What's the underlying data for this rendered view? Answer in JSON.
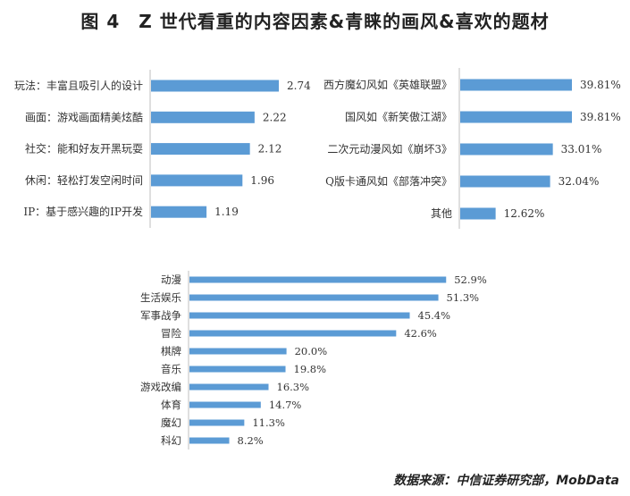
{
  "title": "图 4　Z 世代看重的内容因素&青睐的画风&喜欢的题材",
  "source": "数据来源：中信证券研究部，MobData",
  "colors": {
    "bar": "#5b9bd5",
    "axis": "#bfbfbf"
  },
  "chart_data": [
    {
      "type": "bar",
      "orientation": "horizontal",
      "title": "",
      "categories": [
        "玩法：丰富且吸引人的设计",
        "画面：游戏画面精美炫酷",
        "社交：能和好友开黑玩耍",
        "休闲：轻松打发空闲时间",
        "IP：基于感兴趣的IP开发"
      ],
      "values": [
        2.74,
        2.22,
        2.12,
        1.96,
        1.19
      ],
      "labels": [
        "2.74",
        "2.22",
        "2.12",
        "1.96",
        "1.19"
      ]
    },
    {
      "type": "bar",
      "orientation": "horizontal",
      "title": "",
      "categories": [
        "西方魔幻风如《英雄联盟》",
        "国风如《新笑傲江湖》",
        "二次元动漫风如《崩坏3》",
        "Q版卡通风如《部落冲突》",
        "其他"
      ],
      "values": [
        39.81,
        39.81,
        33.01,
        32.04,
        12.62
      ],
      "labels": [
        "39.81%",
        "39.81%",
        "33.01%",
        "32.04%",
        "12.62%"
      ]
    },
    {
      "type": "bar",
      "orientation": "horizontal",
      "title": "",
      "categories": [
        "动漫",
        "生活娱乐",
        "军事战争",
        "冒险",
        "棋牌",
        "音乐",
        "游戏改编",
        "体育",
        "魔幻",
        "科幻"
      ],
      "values": [
        52.9,
        51.3,
        45.4,
        42.6,
        20.0,
        19.8,
        16.3,
        14.7,
        11.3,
        8.2
      ],
      "labels": [
        "52.9%",
        "51.3%",
        "45.4%",
        "42.6%",
        "20.0%",
        "19.8%",
        "16.3%",
        "14.7%",
        "11.3%",
        "8.2%"
      ]
    }
  ]
}
